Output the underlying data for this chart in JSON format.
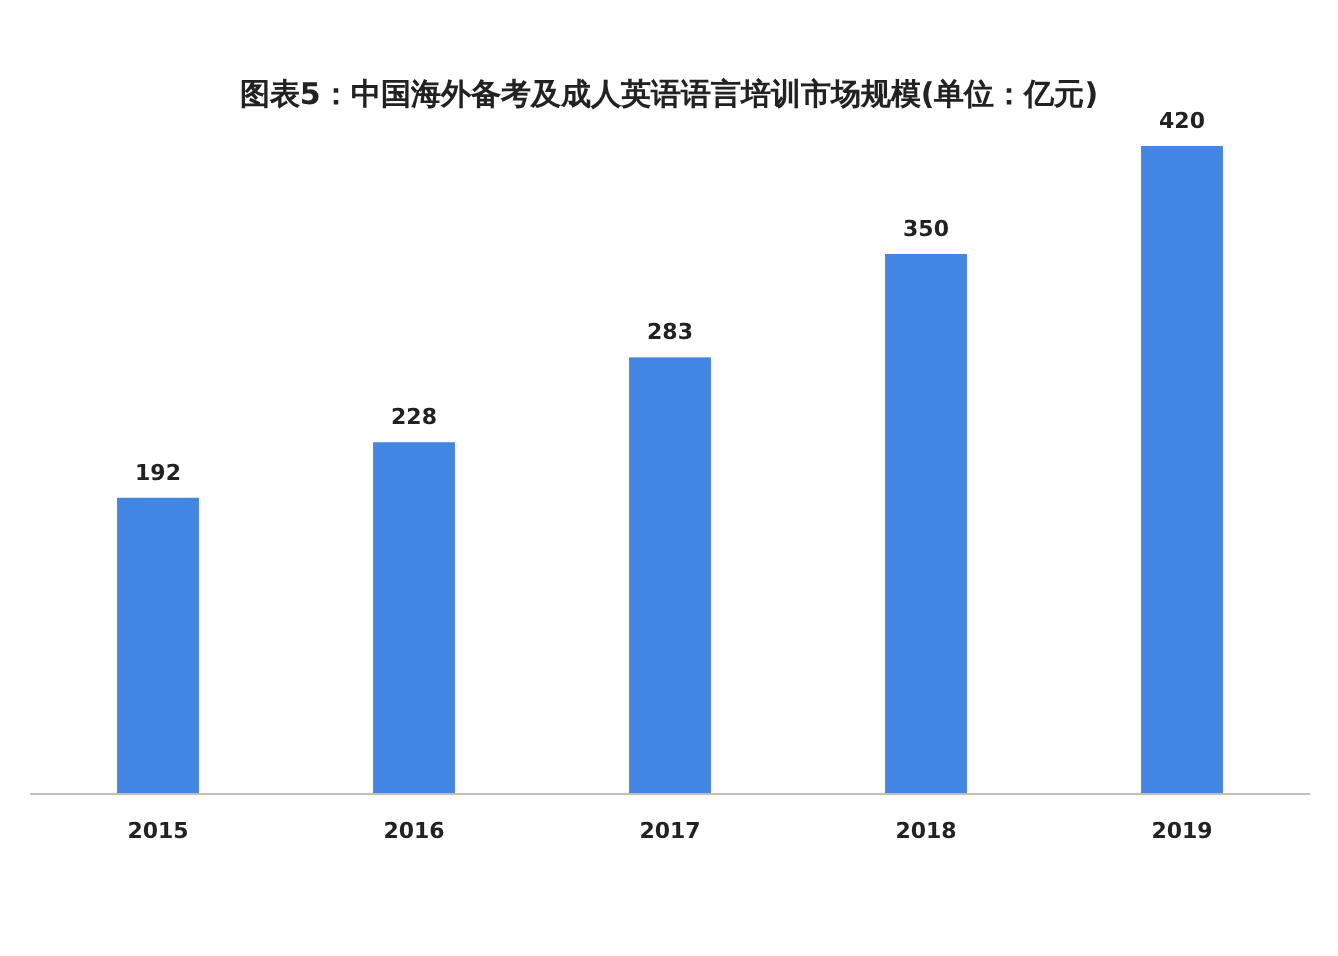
{
  "chart_data": {
    "type": "bar",
    "title": "图表5：中国海外备考及成人英语语言培训市场规模(单位：亿元)",
    "categories": [
      "2015",
      "2016",
      "2017",
      "2018",
      "2019"
    ],
    "values": [
      192,
      228,
      283,
      350,
      420
    ],
    "color": "#4286e3",
    "data_labels": true
  }
}
